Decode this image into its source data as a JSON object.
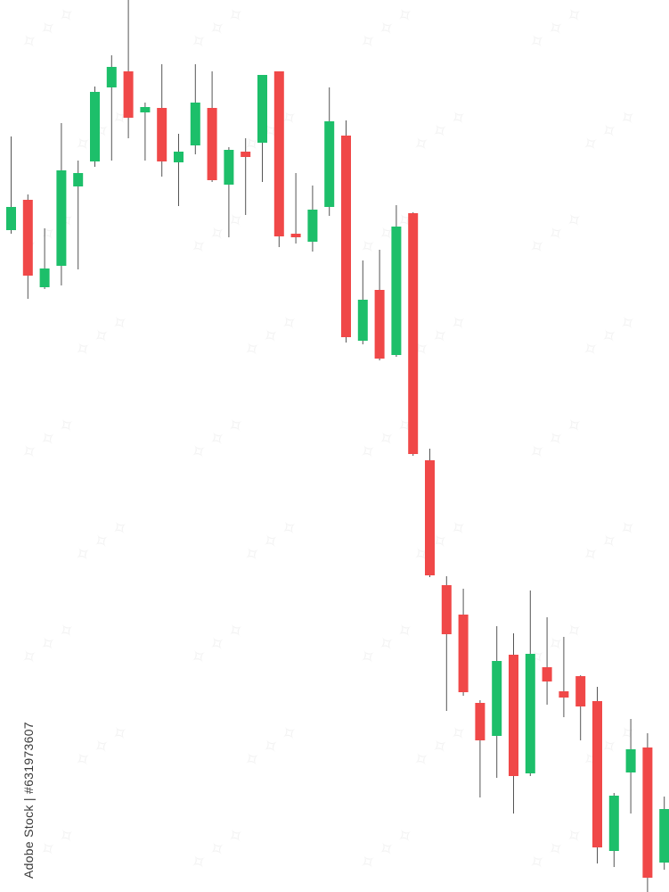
{
  "watermark": {
    "id_text": "Adobe Stock | #631973607"
  },
  "colors": {
    "bullish": "#1dbf6a",
    "bearish": "#f04848",
    "wick": "#555555",
    "background": "#ffffff"
  },
  "chart_data": {
    "type": "candlestick",
    "title": "",
    "xlabel": "",
    "ylabel": "",
    "grid": false,
    "ylim": [
      0,
      1000
    ],
    "candles": [
      {
        "open": 742,
        "close": 768,
        "high": 847,
        "low": 738
      },
      {
        "open": 776,
        "close": 691,
        "high": 782,
        "low": 665
      },
      {
        "open": 678,
        "close": 699,
        "high": 744,
        "low": 676
      },
      {
        "open": 702,
        "close": 809,
        "high": 862,
        "low": 680
      },
      {
        "open": 791,
        "close": 806,
        "high": 820,
        "low": 698
      },
      {
        "open": 819,
        "close": 897,
        "high": 903,
        "low": 813
      },
      {
        "open": 902,
        "close": 925,
        "high": 938,
        "low": 820
      },
      {
        "open": 920,
        "close": 868,
        "high": 1000,
        "low": 845
      },
      {
        "open": 874,
        "close": 880,
        "high": 885,
        "low": 820
      },
      {
        "open": 879,
        "close": 819,
        "high": 928,
        "low": 802
      },
      {
        "open": 818,
        "close": 830,
        "high": 850,
        "low": 769
      },
      {
        "open": 837,
        "close": 885,
        "high": 928,
        "low": 827
      },
      {
        "open": 879,
        "close": 798,
        "high": 920,
        "low": 796
      },
      {
        "open": 793,
        "close": 832,
        "high": 835,
        "low": 734
      },
      {
        "open": 830,
        "close": 824,
        "high": 845,
        "low": 759
      },
      {
        "open": 840,
        "close": 916,
        "high": 916,
        "low": 796
      },
      {
        "open": 920,
        "close": 735,
        "high": 920,
        "low": 723
      },
      {
        "open": 738,
        "close": 734,
        "high": 806,
        "low": 727
      },
      {
        "open": 729,
        "close": 765,
        "high": 792,
        "low": 718
      },
      {
        "open": 768,
        "close": 864,
        "high": 902,
        "low": 758
      },
      {
        "open": 848,
        "close": 622,
        "high": 865,
        "low": 616
      },
      {
        "open": 618,
        "close": 664,
        "high": 708,
        "low": 614
      },
      {
        "open": 675,
        "close": 598,
        "high": 720,
        "low": 596
      },
      {
        "open": 602,
        "close": 746,
        "high": 770,
        "low": 600
      },
      {
        "open": 761,
        "close": 491,
        "high": 762,
        "low": 489
      },
      {
        "open": 484,
        "close": 355,
        "high": 497,
        "low": 353
      },
      {
        "open": 344,
        "close": 289,
        "high": 354,
        "low": 203
      },
      {
        "open": 311,
        "close": 224,
        "high": 340,
        "low": 220
      },
      {
        "open": 212,
        "close": 170,
        "high": 215,
        "low": 106
      },
      {
        "open": 175,
        "close": 259,
        "high": 298,
        "low": 128
      },
      {
        "open": 266,
        "close": 130,
        "high": 290,
        "low": 88
      },
      {
        "open": 133,
        "close": 267,
        "high": 338,
        "low": 130
      },
      {
        "open": 252,
        "close": 236,
        "high": 308,
        "low": 210
      },
      {
        "open": 225,
        "close": 218,
        "high": 286,
        "low": 196
      },
      {
        "open": 242,
        "close": 208,
        "high": 243,
        "low": 170
      },
      {
        "open": 214,
        "close": 50,
        "high": 230,
        "low": 32
      },
      {
        "open": 46,
        "close": 108,
        "high": 111,
        "low": 28
      },
      {
        "open": 134,
        "close": 160,
        "high": 194,
        "low": 88
      },
      {
        "open": 162,
        "close": 16,
        "high": 178,
        "low": 0
      },
      {
        "open": 33,
        "close": 93,
        "high": 107,
        "low": 25
      }
    ]
  }
}
